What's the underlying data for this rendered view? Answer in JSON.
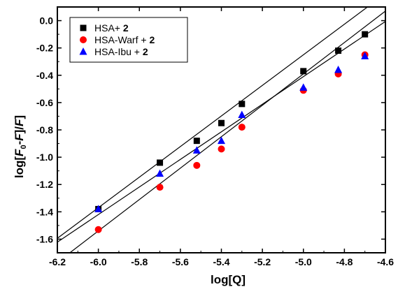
{
  "chart_data": {
    "type": "scatter",
    "title": "",
    "xlabel": "log[Q]",
    "ylabel_parts": [
      "log[",
      "F",
      "0",
      "-",
      "F",
      "]/",
      "F",
      "]"
    ],
    "xlim": [
      -6.2,
      -4.6
    ],
    "ylim": [
      -1.7,
      0.1
    ],
    "x_ticks": [
      -6.2,
      -6.0,
      -5.8,
      -5.6,
      -5.4,
      -5.2,
      -5.0,
      -4.8,
      -4.6
    ],
    "x_tick_labels": [
      "-6.2",
      "-6.0",
      "-5.8",
      "-5.6",
      "-5.4",
      "-5.2",
      "-5.0",
      "-4.8",
      "-4.6"
    ],
    "y_ticks": [
      0.0,
      -0.2,
      -0.4,
      -0.6,
      -0.8,
      -1.0,
      -1.2,
      -1.4,
      -1.6
    ],
    "y_tick_labels": [
      "0.0",
      "-0.2",
      "-0.4",
      "-0.6",
      "-0.8",
      "-1.0",
      "-1.2",
      "-1.4",
      "-1.6"
    ],
    "grid": false,
    "legend_position": "top-left",
    "series": [
      {
        "name": "HSA+ ",
        "name_bold": "2",
        "marker": "square",
        "color": "#000000",
        "x": [
          -6.0,
          -5.7,
          -5.52,
          -5.4,
          -5.3,
          -5.0,
          -4.83,
          -4.7
        ],
        "y": [
          -1.38,
          -1.04,
          -0.88,
          -0.75,
          -0.61,
          -0.37,
          -0.22,
          -0.1
        ],
        "fit": {
          "slope": 1.12,
          "intercept": 5.35
        }
      },
      {
        "name": "HSA-Warf + ",
        "name_bold": "2",
        "marker": "circle",
        "color": "#ff0000",
        "x": [
          -6.0,
          -5.7,
          -5.52,
          -5.4,
          -5.3,
          -5.0,
          -4.83,
          -4.7
        ],
        "y": [
          -1.53,
          -1.22,
          -1.06,
          -0.94,
          -0.78,
          -0.51,
          -0.39,
          -0.25
        ],
        "fit": {
          "slope": 1.15,
          "intercept": 5.36
        }
      },
      {
        "name": "HSA-Ibu + ",
        "name_bold": "2",
        "marker": "triangle",
        "color": "#0000ff",
        "x": [
          -6.0,
          -5.7,
          -5.52,
          -5.4,
          -5.3,
          -5.0,
          -4.83,
          -4.7
        ],
        "y": [
          -1.38,
          -1.12,
          -0.95,
          -0.88,
          -0.69,
          -0.49,
          -0.36,
          -0.26
        ],
        "fit": {
          "slope": 1.01,
          "intercept": 4.64
        }
      }
    ]
  }
}
